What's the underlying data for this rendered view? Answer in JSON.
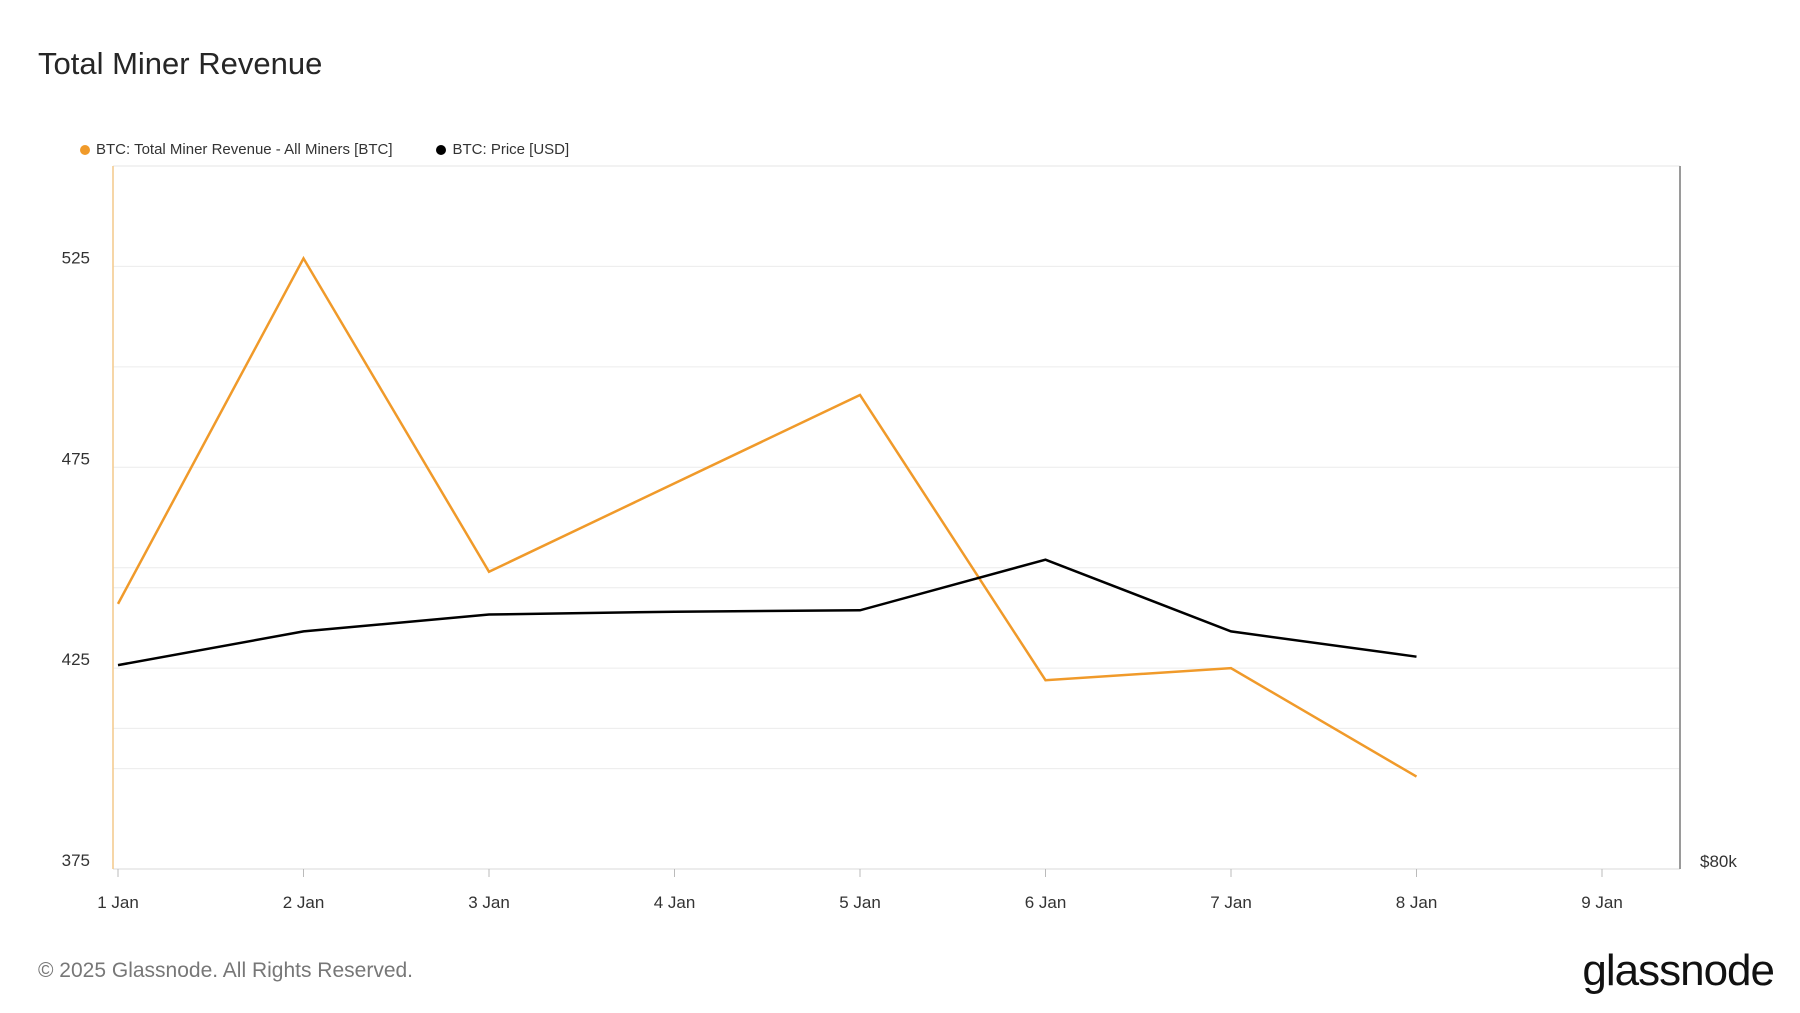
{
  "title": "Total Miner Revenue",
  "footer": "© 2025 Glassnode. All Rights Reserved.",
  "logo": "glassnode",
  "legend": [
    {
      "label": "BTC: Total Miner Revenue - All Miners [BTC]",
      "color": "#f09a2a"
    },
    {
      "label": "BTC: Price [USD]",
      "color": "#000000"
    }
  ],
  "chart_data": {
    "type": "line",
    "title": "Total Miner Revenue",
    "x_ticks": [
      "1 Jan",
      "2 Jan",
      "3 Jan",
      "4 Jan",
      "5 Jan",
      "6 Jan",
      "7 Jan",
      "8 Jan",
      "9 Jan"
    ],
    "y_left_ticks": [
      375,
      425,
      475,
      525
    ],
    "y_left_range": [
      375,
      550
    ],
    "y_right_ticks": [
      "$80k"
    ],
    "y_right_range": [
      80000,
      130000
    ],
    "grid": true,
    "legend_position": "top-left",
    "series": [
      {
        "name": "BTC: Total Miner Revenue - All Miners [BTC]",
        "axis": "left",
        "color": "#f09a2a",
        "points": [
          {
            "x": "1 Jan",
            "y": 441
          },
          {
            "x": "2 Jan",
            "y": 527
          },
          {
            "x": "3 Jan",
            "y": 449
          },
          {
            "x": "5 Jan",
            "y": 493
          },
          {
            "x": "6 Jan",
            "y": 422
          },
          {
            "x": "7 Jan",
            "y": 425
          },
          {
            "x": "8 Jan",
            "y": 398
          }
        ]
      },
      {
        "name": "BTC: Price [USD]",
        "axis": "right",
        "color": "#000000",
        "points": [
          {
            "x": "1 Jan",
            "y": 94500
          },
          {
            "x": "2 Jan",
            "y": 96900
          },
          {
            "x": "3 Jan",
            "y": 98100
          },
          {
            "x": "4 Jan",
            "y": 98300
          },
          {
            "x": "5 Jan",
            "y": 98400
          },
          {
            "x": "6 Jan",
            "y": 102000
          },
          {
            "x": "7 Jan",
            "y": 96900
          },
          {
            "x": "8 Jan",
            "y": 95100
          }
        ]
      }
    ]
  }
}
